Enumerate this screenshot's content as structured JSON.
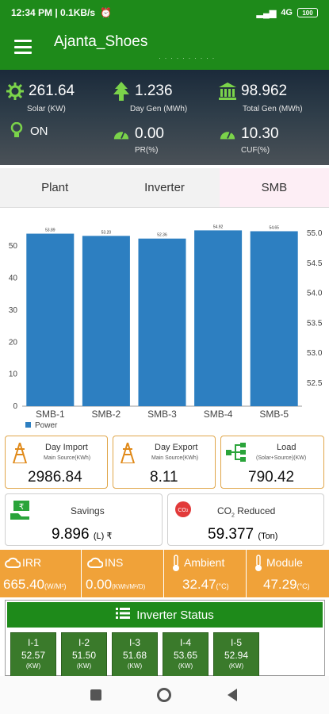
{
  "status_bar": {
    "time_speed": "12:34 PM | 0.1KB/s",
    "network": "4G",
    "battery": "100"
  },
  "app_bar": {
    "title": "Ajanta_Shoes",
    "subtitle": "· · · · · · · · · ·"
  },
  "stats": {
    "solar": {
      "value": "261.64",
      "label": "Solar (KW)"
    },
    "day_gen": {
      "value": "1.236",
      "label": "Day Gen (MWh)"
    },
    "total_gen": {
      "value": "98.962",
      "label": "Total Gen (MWh)"
    },
    "status": {
      "value": "ON"
    },
    "pr": {
      "value": "0.00",
      "label": "PR(%)"
    },
    "cuf": {
      "value": "10.30",
      "label": "CUF(%)"
    }
  },
  "tabs": [
    {
      "label": "Plant"
    },
    {
      "label": "Inverter"
    },
    {
      "label": "SMB",
      "active": true
    }
  ],
  "chart_data": {
    "type": "bar",
    "categories": [
      "SMB-1",
      "SMB-2",
      "SMB-3",
      "SMB-4",
      "SMB-5"
    ],
    "series": [
      {
        "name": "Power",
        "values": [
          53.89,
          53.2,
          52.36,
          54.92,
          54.65
        ],
        "labels": [
          "53.89",
          "53.20",
          "52.36",
          "54.92",
          "54.65"
        ]
      }
    ],
    "ylim": [
      0,
      57
    ],
    "yticks": [
      0,
      10,
      20,
      30,
      40,
      50
    ],
    "y2ticks": [
      "52.5",
      "53.0",
      "53.5",
      "54.0",
      "54.5",
      "55.0"
    ],
    "legend": "bottom-left",
    "color": "#2d7fc1"
  },
  "cards": {
    "day_import": {
      "title": "Day Import",
      "sub": "Main Source(KWh)",
      "value": "2986.84"
    },
    "day_export": {
      "title": "Day Export",
      "sub": "Main Source(KWh)",
      "value": "8.11"
    },
    "load": {
      "title": "Load",
      "sub": "(Solar+Source)(KW)",
      "value": "790.42"
    },
    "savings": {
      "title": "Savings",
      "value": "9.896",
      "unit": "(L) ₹"
    },
    "co2": {
      "title": "CO",
      "sub2": "2",
      "title2": "Reduced",
      "value": "59.377",
      "unit": "(Ton)"
    }
  },
  "weather": {
    "irr": {
      "label": "IRR",
      "value": "665.40",
      "unit": "(W/M²)"
    },
    "ins": {
      "label": "INS",
      "value": "0.00",
      "unit": "(KWh/M²/D)"
    },
    "ambient": {
      "label": "Ambient",
      "value": "32.47",
      "unit": "(°C)"
    },
    "module": {
      "label": "Module",
      "value": "47.29",
      "unit": "(°C)"
    }
  },
  "inverter_status": {
    "title": "Inverter Status",
    "items": [
      {
        "name": "I-1",
        "value": "52.57",
        "unit": "(KW)"
      },
      {
        "name": "I-2",
        "value": "51.50",
        "unit": "(KW)"
      },
      {
        "name": "I-3",
        "value": "51.68",
        "unit": "(KW)"
      },
      {
        "name": "I-4",
        "value": "53.65",
        "unit": "(KW)"
      },
      {
        "name": "I-5",
        "value": "52.94",
        "unit": "(KW)"
      }
    ]
  },
  "colors": {
    "primary": "#1e8a1a",
    "accent": "#f0a239",
    "card_border": "#e0a64a",
    "bar": "#2d7fc1"
  }
}
